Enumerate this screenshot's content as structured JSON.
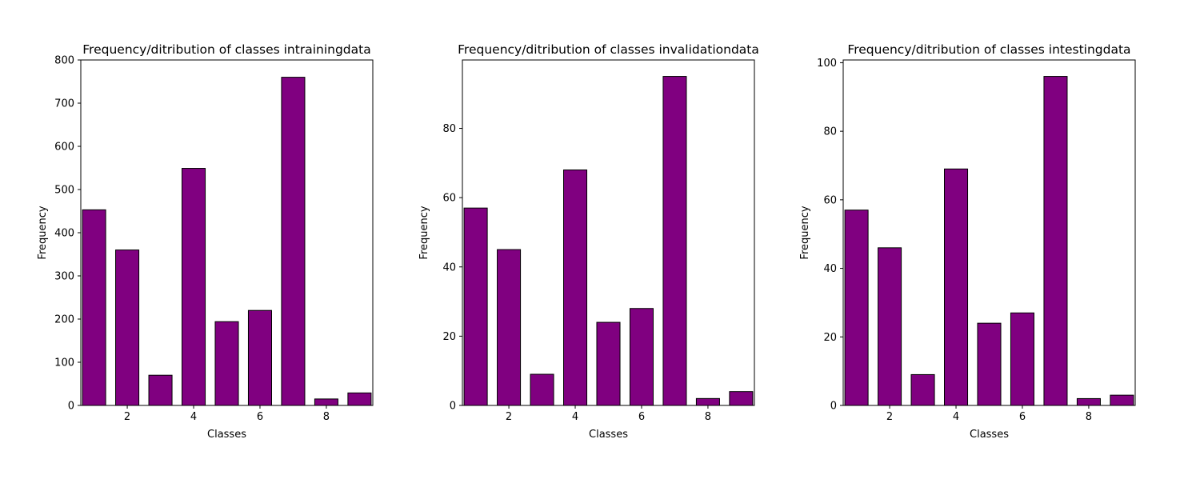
{
  "chart_data": [
    {
      "type": "bar",
      "title": "Frequency/ditribution of classes intrainingdata",
      "xlabel": "Classes",
      "ylabel": "Frequency",
      "categories": [
        1,
        2,
        3,
        4,
        5,
        6,
        7,
        8,
        9
      ],
      "values": [
        453,
        360,
        70,
        549,
        194,
        220,
        760,
        15,
        29
      ],
      "xlim": [
        0.6,
        9.4
      ],
      "ylim": [
        0,
        800
      ],
      "xticks": [
        2,
        4,
        6,
        8
      ],
      "yticks": [
        0,
        100,
        200,
        300,
        400,
        500,
        600,
        700,
        800
      ],
      "color": "#800080",
      "edgecolor": "#000000",
      "grid": false
    },
    {
      "type": "bar",
      "title": "Frequency/ditribution of classes invalidationdata",
      "xlabel": "Classes",
      "ylabel": "Frequency",
      "categories": [
        1,
        2,
        3,
        4,
        5,
        6,
        7,
        8,
        9
      ],
      "values": [
        57,
        45,
        9,
        68,
        24,
        28,
        95,
        2,
        4
      ],
      "xlim": [
        0.6,
        9.4
      ],
      "ylim": [
        0,
        99.75
      ],
      "xticks": [
        2,
        4,
        6,
        8
      ],
      "yticks": [
        0,
        20,
        40,
        60,
        80
      ],
      "color": "#800080",
      "edgecolor": "#000000",
      "grid": false
    },
    {
      "type": "bar",
      "title": "Frequency/ditribution of classes intestingdata",
      "xlabel": "Classes",
      "ylabel": "Frequency",
      "categories": [
        1,
        2,
        3,
        4,
        5,
        6,
        7,
        8,
        9
      ],
      "values": [
        57,
        46,
        9,
        69,
        24,
        27,
        96,
        2,
        3
      ],
      "xlim": [
        0.6,
        9.4
      ],
      "ylim": [
        0,
        100.8
      ],
      "xticks": [
        2,
        4,
        6,
        8
      ],
      "yticks": [
        0,
        20,
        40,
        60,
        80,
        100
      ],
      "color": "#800080",
      "edgecolor": "#000000",
      "grid": false
    }
  ]
}
